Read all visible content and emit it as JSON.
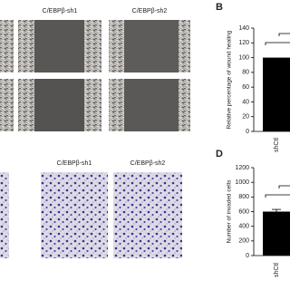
{
  "panels": {
    "wound_labels": [
      "C/EBPβ-sh1",
      "C/EBPβ-sh2"
    ],
    "invasion_labels": [
      "C/EBPβ-sh1",
      "C/EBPβ-sh2"
    ]
  },
  "chart_data": [
    {
      "type": "bar",
      "panel_label": "B",
      "y_label": "Relative percentage of wound healing",
      "categories": [
        "shCtl"
      ],
      "values": [
        100
      ],
      "color": "#000000",
      "ylim": [
        0,
        140
      ],
      "yticks": [
        0,
        20,
        40,
        60,
        80,
        100,
        120,
        140
      ]
    },
    {
      "type": "bar",
      "panel_label": "D",
      "y_label": "Number of invaded cells",
      "categories": [
        "shCtl"
      ],
      "values": [
        600
      ],
      "errors": [
        30
      ],
      "color": "#000000",
      "ylim": [
        0,
        1200
      ],
      "yticks": [
        0,
        200,
        400,
        600,
        800,
        1000,
        1200
      ]
    }
  ]
}
